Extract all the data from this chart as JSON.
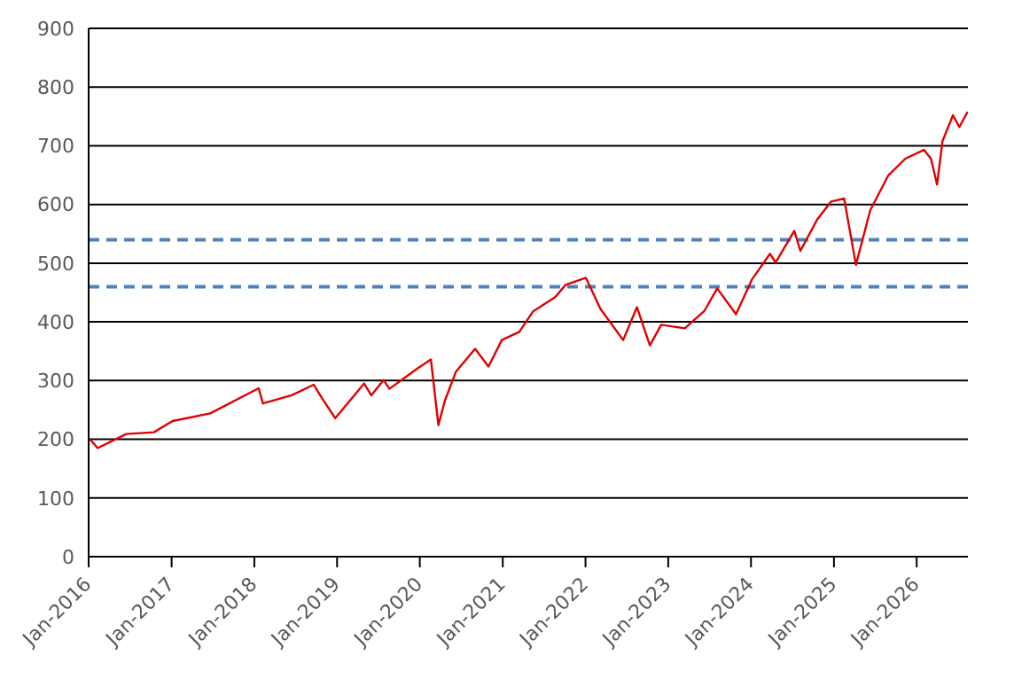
{
  "chart_data": {
    "type": "line",
    "x": [
      "2016-01-04",
      "2016-02-10",
      "2016-06-15",
      "2016-10-15",
      "2017-01-05",
      "2017-06-20",
      "2018-01-20",
      "2018-02-08",
      "2018-06-15",
      "2018-09-20",
      "2018-10-25",
      "2018-12-24",
      "2019-04-30",
      "2019-06-01",
      "2019-07-25",
      "2019-08-20",
      "2019-12-20",
      "2020-02-19",
      "2020-03-23",
      "2020-04-20",
      "2020-06-08",
      "2020-09-01",
      "2020-10-30",
      "2020-12-28",
      "2021-03-15",
      "2021-05-15",
      "2021-08-20",
      "2021-10-05",
      "2022-01-03",
      "2022-03-08",
      "2022-06-16",
      "2022-08-16",
      "2022-10-12",
      "2022-12-01",
      "2023-03-15",
      "2023-06-10",
      "2023-08-05",
      "2023-10-27",
      "2024-01-05",
      "2024-03-25",
      "2024-04-19",
      "2024-07-10",
      "2024-08-06",
      "2024-10-20",
      "2024-12-20",
      "2025-02-15",
      "2025-04-08",
      "2025-06-10",
      "2025-08-28",
      "2025-11-12",
      "2026-02-02",
      "2026-03-05",
      "2026-04-01",
      "2026-04-25",
      "2026-06-10",
      "2026-07-08",
      "2026-08-14"
    ],
    "series": [
      {
        "color": "#e00000",
        "values": [
          201,
          185,
          209,
          212,
          231,
          244,
          287,
          261,
          275,
          293,
          271,
          236,
          295,
          275,
          301,
          286,
          320,
          336,
          224,
          265,
          315,
          354,
          324,
          369,
          383,
          418,
          442,
          463,
          475,
          422,
          369,
          425,
          360,
          395,
          389,
          419,
          457,
          413,
          472,
          516,
          501,
          555,
          521,
          575,
          605,
          610,
          497,
          590,
          649,
          678,
          693,
          678,
          634,
          708,
          752,
          732,
          758
        ]
      }
    ],
    "xlim": [
      "2016-01-01",
      "2026-08-15"
    ],
    "xticks": [
      {
        "value": "2016-01-01",
        "label": "Jan-2016"
      },
      {
        "value": "2017-01-01",
        "label": "Jan-2017"
      },
      {
        "value": "2018-01-01",
        "label": "Jan-2018"
      },
      {
        "value": "2019-01-01",
        "label": "Jan-2019"
      },
      {
        "value": "2020-01-01",
        "label": "Jan-2020"
      },
      {
        "value": "2021-01-01",
        "label": "Jan-2021"
      },
      {
        "value": "2022-01-01",
        "label": "Jan-2022"
      },
      {
        "value": "2023-01-01",
        "label": "Jan-2023"
      },
      {
        "value": "2024-01-01",
        "label": "Jan-2024"
      },
      {
        "value": "2025-01-01",
        "label": "Jan-2025"
      },
      {
        "value": "2026-01-01",
        "label": "Jan-2026"
      }
    ],
    "ylim": [
      0,
      900
    ],
    "yticks": [
      0,
      100,
      200,
      300,
      400,
      500,
      600,
      700,
      800,
      900
    ],
    "grid": "y",
    "legend": false,
    "marker": "none",
    "line_style": "solid",
    "ref_lines": [
      {
        "axis": "y",
        "value": 540,
        "color": "#4f81bd",
        "line_style": "dashed"
      },
      {
        "axis": "y",
        "value": 460,
        "color": "#4f81bd",
        "line_style": "dashed"
      }
    ]
  }
}
